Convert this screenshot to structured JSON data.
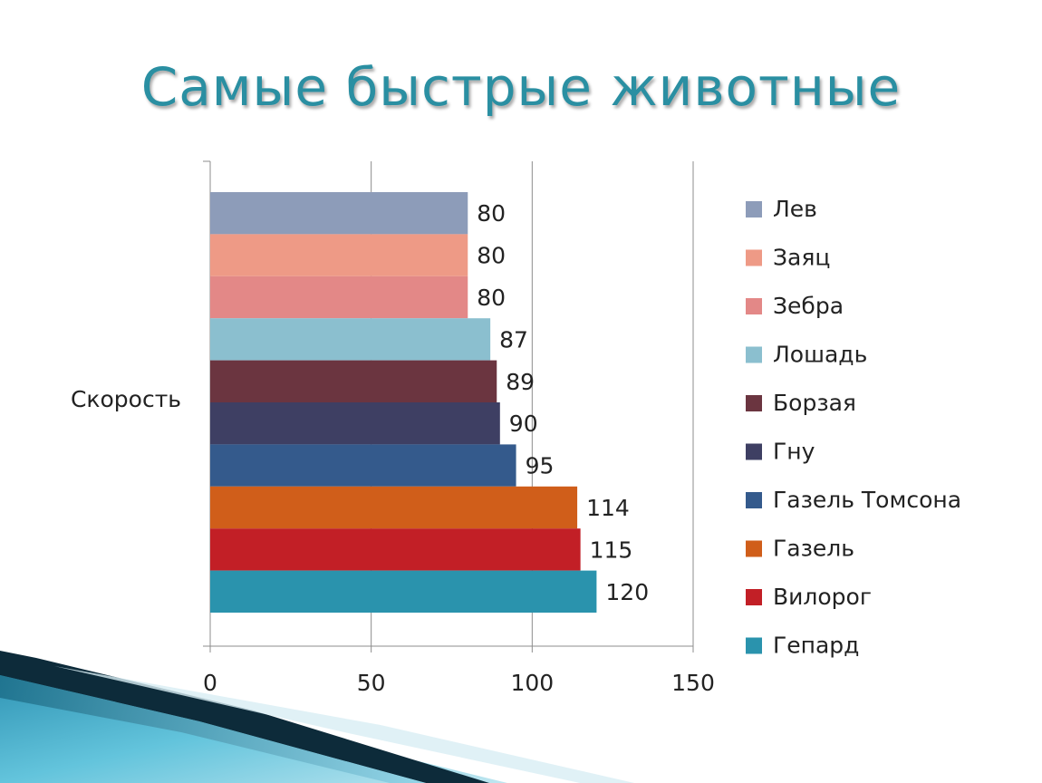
{
  "title": "Самые быстрые животные",
  "chart_data": {
    "type": "bar",
    "orientation": "horizontal",
    "category": "Скорость",
    "xlim": [
      0,
      150
    ],
    "x_ticks": [
      0,
      50,
      100,
      150
    ],
    "grid": true,
    "legend_position": "right",
    "series": [
      {
        "name": "Лев",
        "value": 80,
        "color": "#8d9cb9"
      },
      {
        "name": "Заяц",
        "value": 80,
        "color": "#ee9a86"
      },
      {
        "name": "Зебра",
        "value": 80,
        "color": "#e38887"
      },
      {
        "name": "Лошадь",
        "value": 87,
        "color": "#8bbfcf"
      },
      {
        "name": "Борзая",
        "value": 89,
        "color": "#6b3540"
      },
      {
        "name": "Гну",
        "value": 90,
        "color": "#3e3f63"
      },
      {
        "name": "Газель Томсона",
        "value": 95,
        "color": "#345a8c"
      },
      {
        "name": "Газель",
        "value": 114,
        "color": "#d05e1a"
      },
      {
        "name": "Вилорог",
        "value": 115,
        "color": "#c21f26"
      },
      {
        "name": "Гепард",
        "value": 120,
        "color": "#2a93ad"
      }
    ]
  }
}
